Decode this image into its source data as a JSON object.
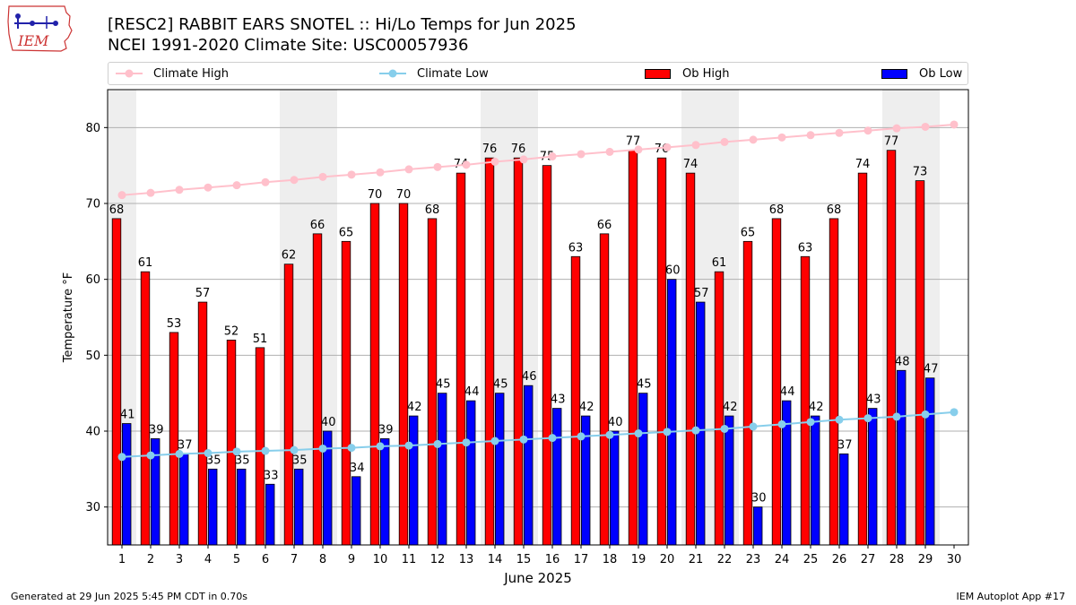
{
  "header": {
    "logo_text": "IEM",
    "title_line1": "[RESC2] RABBIT EARS SNOTEL :: Hi/Lo Temps for Jun 2025",
    "title_line2": "NCEI 1991-2020 Climate Site: USC00057936"
  },
  "legend": {
    "climate_high": "Climate High",
    "climate_low": "Climate Low",
    "ob_high": "Ob High",
    "ob_low": "Ob Low"
  },
  "footer": {
    "generated": "Generated at 29 Jun 2025 5:45 PM CDT in 0.70s",
    "app": "IEM Autoplot App #17"
  },
  "colors": {
    "ob_high": "#ff0000",
    "ob_low": "#0000ff",
    "climate_high": "#ffc0cb",
    "climate_low": "#87ceeb",
    "weekend_band": "#eeeeee"
  },
  "chart_data": {
    "type": "bar",
    "xlabel": "June 2025",
    "ylabel": "Temperature °F",
    "ylim": [
      25,
      85
    ],
    "yticks": [
      30,
      40,
      50,
      60,
      70,
      80
    ],
    "grid": "horizontal",
    "legend_position": "top",
    "days": [
      1,
      2,
      3,
      4,
      5,
      6,
      7,
      8,
      9,
      10,
      11,
      12,
      13,
      14,
      15,
      16,
      17,
      18,
      19,
      20,
      21,
      22,
      23,
      24,
      25,
      26,
      27,
      28,
      29,
      30
    ],
    "weekend_days": [
      1,
      7,
      8,
      14,
      15,
      21,
      22,
      28,
      29
    ],
    "series": [
      {
        "name": "Ob High",
        "kind": "bar",
        "values": [
          68,
          61,
          53,
          57,
          52,
          51,
          62,
          66,
          65,
          70,
          70,
          68,
          74,
          76,
          76,
          75,
          63,
          66,
          77,
          76,
          74,
          61,
          65,
          68,
          63,
          68,
          74,
          77,
          73
        ]
      },
      {
        "name": "Ob Low",
        "kind": "bar",
        "values": [
          41,
          39,
          37,
          35,
          35,
          33,
          35,
          40,
          34,
          39,
          42,
          45,
          44,
          45,
          46,
          43,
          42,
          40,
          45,
          60,
          57,
          42,
          30,
          44,
          42,
          37,
          43,
          48,
          47
        ]
      },
      {
        "name": "Climate High",
        "kind": "line",
        "values": [
          71.1,
          71.4,
          71.8,
          72.1,
          72.4,
          72.8,
          73.1,
          73.5,
          73.8,
          74.1,
          74.5,
          74.8,
          75.1,
          75.5,
          75.8,
          76.2,
          76.5,
          76.8,
          77.1,
          77.4,
          77.7,
          78.1,
          78.4,
          78.7,
          79.0,
          79.3,
          79.6,
          79.9,
          80.1,
          80.4
        ]
      },
      {
        "name": "Climate Low",
        "kind": "line",
        "values": [
          36.6,
          36.8,
          37.0,
          37.1,
          37.3,
          37.4,
          37.5,
          37.7,
          37.8,
          38.0,
          38.1,
          38.3,
          38.5,
          38.7,
          38.9,
          39.1,
          39.3,
          39.5,
          39.7,
          39.9,
          40.1,
          40.3,
          40.6,
          40.9,
          41.2,
          41.5,
          41.7,
          41.9,
          42.2,
          42.5
        ]
      }
    ]
  }
}
